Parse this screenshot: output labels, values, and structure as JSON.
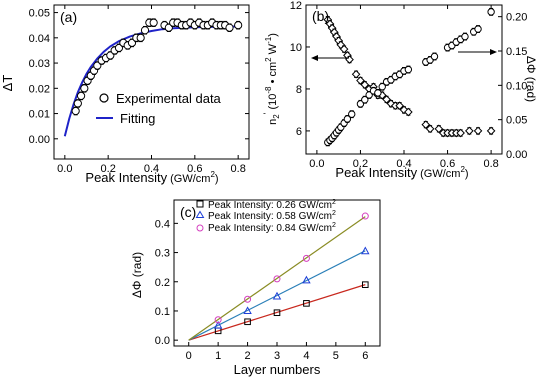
{
  "chart_data": [
    {
      "panel_label": "(a)",
      "type": "scatter",
      "xlabel_main": "Peak Intensity",
      "xlabel_unit_pre": " (GW/cm",
      "xlabel_unit_sup": "2",
      "xlabel_unit_post": ")",
      "ylabel": "ΔT",
      "xlim": [
        -0.05,
        0.85
      ],
      "ylim": [
        -0.008,
        0.053
      ],
      "xticks": [
        "0.0",
        "0.2",
        "0.4",
        "0.6",
        "0.8"
      ],
      "yticks": [
        "0.00",
        "0.01",
        "0.02",
        "0.03",
        "0.04",
        "0.05"
      ],
      "xtick_values": [
        0,
        0.2,
        0.4,
        0.6,
        0.8
      ],
      "ytick_values": [
        0,
        0.01,
        0.02,
        0.03,
        0.04,
        0.05
      ],
      "legend_position": "bottom-right",
      "series": [
        {
          "name": "Experimental data",
          "marker": "open-circle",
          "color": "#000000",
          "x": [
            0.05,
            0.06,
            0.075,
            0.09,
            0.105,
            0.12,
            0.135,
            0.15,
            0.17,
            0.19,
            0.21,
            0.23,
            0.25,
            0.27,
            0.29,
            0.31,
            0.33,
            0.35,
            0.37,
            0.39,
            0.41,
            0.46,
            0.48,
            0.5,
            0.52,
            0.54,
            0.56,
            0.58,
            0.6,
            0.62,
            0.64,
            0.66,
            0.68,
            0.7,
            0.72,
            0.74,
            0.76,
            0.8
          ],
          "y": [
            0.011,
            0.014,
            0.017,
            0.02,
            0.023,
            0.025,
            0.027,
            0.029,
            0.031,
            0.032,
            0.033,
            0.035,
            0.036,
            0.038,
            0.037,
            0.038,
            0.04,
            0.04,
            0.043,
            0.046,
            0.046,
            0.045,
            0.044,
            0.046,
            0.046,
            0.045,
            0.045,
            0.046,
            0.045,
            0.046,
            0.045,
            0.045,
            0.046,
            0.045,
            0.045,
            0.045,
            0.044,
            0.045
          ],
          "yerr": 0.0015
        },
        {
          "name": "Fitting",
          "marker": "line",
          "color": "#1f23c8",
          "x": [
            0.0,
            0.02,
            0.04,
            0.06,
            0.08,
            0.1,
            0.12,
            0.15,
            0.18,
            0.21,
            0.25,
            0.3,
            0.35,
            0.4,
            0.45,
            0.5,
            0.6,
            0.7,
            0.8
          ],
          "y": [
            0.001,
            0.0079,
            0.0136,
            0.0184,
            0.0224,
            0.0257,
            0.0285,
            0.0318,
            0.0345,
            0.0366,
            0.0387,
            0.0405,
            0.0418,
            0.0427,
            0.0434,
            0.0438,
            0.0442,
            0.0444,
            0.0445
          ]
        }
      ]
    },
    {
      "panel_label": "(b)",
      "type": "scatter",
      "xlabel_main": "Peak Intensity",
      "xlabel_unit_pre": " (GW/cm",
      "xlabel_unit_sup": "2",
      "xlabel_unit_post": ")",
      "ylabel_left_parts": [
        "n",
        "2",
        "'",
        " (10",
        "-8",
        " ",
        "•",
        " cm",
        "2",
        " W",
        "-1",
        ")"
      ],
      "ylabel_right": "ΔΦ (rad)",
      "xlim": [
        -0.05,
        0.85
      ],
      "ylim_left": [
        4.9,
        12.0
      ],
      "ylim_right": [
        0.0,
        0.217
      ],
      "xticks": [
        "0.0",
        "0.2",
        "0.4",
        "0.6",
        "0.8"
      ],
      "yticks_left": [
        "6",
        "8",
        "10",
        "12"
      ],
      "yticks_right": [
        "0.00",
        "0.05",
        "0.10",
        "0.15",
        "0.20"
      ],
      "xtick_values": [
        0,
        0.2,
        0.4,
        0.6,
        0.8
      ],
      "ytick_left_values": [
        6,
        8,
        10,
        12
      ],
      "ytick_right_values": [
        0,
        0.05,
        0.1,
        0.15,
        0.2
      ],
      "series": [
        {
          "name": "n2'",
          "axis": "left",
          "marker": "open-diamond",
          "x": [
            0.05,
            0.06,
            0.07,
            0.08,
            0.09,
            0.1,
            0.11,
            0.125,
            0.14,
            0.15,
            0.18,
            0.2,
            0.22,
            0.24,
            0.26,
            0.28,
            0.3,
            0.32,
            0.34,
            0.36,
            0.38,
            0.4,
            0.42,
            0.5,
            0.52,
            0.56,
            0.58,
            0.6,
            0.62,
            0.64,
            0.66,
            0.7,
            0.74,
            0.8
          ],
          "y": [
            11.3,
            11.1,
            10.9,
            10.7,
            10.5,
            10.3,
            10.1,
            9.9,
            9.6,
            9.4,
            8.7,
            8.4,
            8.2,
            8.0,
            8.1,
            7.7,
            7.7,
            7.5,
            7.3,
            7.2,
            7.2,
            7.0,
            6.9,
            6.3,
            6.1,
            6.1,
            5.9,
            5.9,
            5.9,
            5.9,
            5.9,
            6.0,
            6.0,
            6.0
          ],
          "yerr": 0.15
        },
        {
          "name": "ΔΦ",
          "axis": "right",
          "marker": "open-circle",
          "x": [
            0.05,
            0.06,
            0.07,
            0.08,
            0.09,
            0.1,
            0.11,
            0.125,
            0.14,
            0.16,
            0.2,
            0.22,
            0.24,
            0.26,
            0.28,
            0.3,
            0.32,
            0.34,
            0.36,
            0.38,
            0.4,
            0.42,
            0.5,
            0.52,
            0.54,
            0.6,
            0.62,
            0.64,
            0.66,
            0.68,
            0.72,
            0.74,
            0.8
          ],
          "y": [
            0.017,
            0.02,
            0.023,
            0.027,
            0.031,
            0.035,
            0.039,
            0.045,
            0.051,
            0.058,
            0.073,
            0.079,
            0.086,
            0.092,
            0.089,
            0.098,
            0.105,
            0.108,
            0.113,
            0.116,
            0.121,
            0.123,
            0.134,
            0.137,
            0.142,
            0.155,
            0.158,
            0.163,
            0.167,
            0.171,
            0.178,
            0.182,
            0.207
          ],
          "yerr": 0.005
        }
      ]
    },
    {
      "panel_label": "(c)",
      "type": "scatter",
      "xlabel": "Layer numbers",
      "ylabel": "ΔΦ (rad)",
      "xlim": [
        -0.5,
        6.5
      ],
      "ylim": [
        -0.02,
        0.48
      ],
      "xticks": [
        "0",
        "1",
        "2",
        "3",
        "4",
        "5",
        "6"
      ],
      "yticks": [
        "0.0",
        "0.1",
        "0.2",
        "0.3",
        "0.4"
      ],
      "xtick_values": [
        0,
        1,
        2,
        3,
        4,
        5,
        6
      ],
      "ytick_values": [
        0,
        0.1,
        0.2,
        0.3,
        0.4
      ],
      "legend_position": "top-left",
      "series": [
        {
          "name_pre": "Peak Intensity: 0.26 GW/cm",
          "name_sup": "2",
          "marker": "open-square",
          "color": "#000000",
          "fit_color": "#c8281e",
          "x": [
            1,
            2,
            3,
            4,
            6
          ],
          "y": [
            0.032,
            0.063,
            0.094,
            0.126,
            0.19
          ],
          "slope": 0.0317
        },
        {
          "name_pre": "Peak Intensity: 0.58 GW/cm",
          "name_sup": "2",
          "marker": "open-triangle",
          "color": "#1d3fd8",
          "fit_color": "#2a7fb8",
          "x": [
            1,
            2,
            3,
            4,
            6
          ],
          "y": [
            0.05,
            0.1,
            0.15,
            0.205,
            0.305
          ],
          "slope": 0.051
        },
        {
          "name_pre": "Peak Intensity: 0.84 GW/cm",
          "name_sup": "2",
          "marker": "open-circle",
          "color": "#d43fbf",
          "fit_color": "#8a8c24",
          "x": [
            1,
            2,
            3,
            4,
            6
          ],
          "y": [
            0.07,
            0.14,
            0.21,
            0.28,
            0.425
          ],
          "slope": 0.0705
        }
      ]
    }
  ]
}
